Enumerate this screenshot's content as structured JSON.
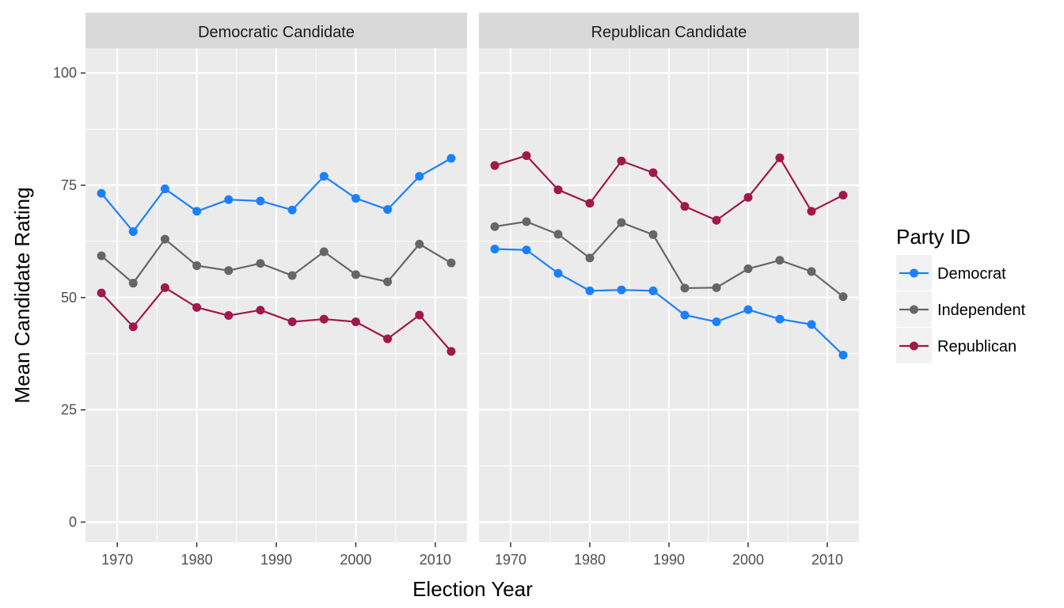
{
  "chart_data": {
    "type": "line",
    "facet_titles": [
      "Democratic Candidate",
      "Republican Candidate"
    ],
    "xlabel": "Election Year",
    "ylabel": "Mean Candidate Rating",
    "x_ticks": [
      1970,
      1980,
      1990,
      2000,
      2010
    ],
    "y_ticks": [
      0,
      25,
      50,
      75,
      100
    ],
    "xlim": [
      1966,
      2014
    ],
    "ylim": [
      -4.5,
      105.5
    ],
    "grid": true,
    "legend": {
      "title": "Party ID",
      "position": "right",
      "entries": [
        {
          "name": "Democrat",
          "color": "#1a80ff"
        },
        {
          "name": "Independent",
          "color": "#666666"
        },
        {
          "name": "Republican",
          "color": "#a0184c"
        }
      ]
    },
    "x": [
      1968,
      1972,
      1976,
      1980,
      1984,
      1988,
      1992,
      1996,
      2000,
      2004,
      2008,
      2012
    ],
    "panels": [
      {
        "title": "Democratic Candidate",
        "series": [
          {
            "name": "Democrat",
            "values": [
              73.2,
              64.7,
              74.2,
              69.2,
              71.8,
              71.5,
              69.5,
              77.0,
              72.1,
              69.6,
              77.0,
              81.0
            ]
          },
          {
            "name": "Independent",
            "values": [
              59.3,
              53.2,
              63.0,
              57.1,
              56.0,
              57.6,
              54.9,
              60.2,
              55.1,
              53.5,
              61.9,
              57.7
            ]
          },
          {
            "name": "Republican",
            "values": [
              51.0,
              43.5,
              52.2,
              47.8,
              46.0,
              47.2,
              44.6,
              45.2,
              44.6,
              40.8,
              46.1,
              38.0
            ]
          }
        ]
      },
      {
        "title": "Republican Candidate",
        "series": [
          {
            "name": "Democrat",
            "values": [
              60.8,
              60.6,
              55.4,
              51.5,
              51.7,
              51.5,
              46.1,
              44.6,
              47.3,
              45.2,
              44.0,
              37.2
            ]
          },
          {
            "name": "Independent",
            "values": [
              65.8,
              66.9,
              64.1,
              58.8,
              66.7,
              64.0,
              52.1,
              52.2,
              56.4,
              58.3,
              55.8,
              50.2
            ]
          },
          {
            "name": "Republican",
            "values": [
              79.4,
              81.6,
              74.0,
              71.0,
              80.4,
              77.8,
              70.3,
              67.2,
              72.3,
              81.1,
              69.2,
              72.8
            ]
          }
        ]
      }
    ]
  }
}
